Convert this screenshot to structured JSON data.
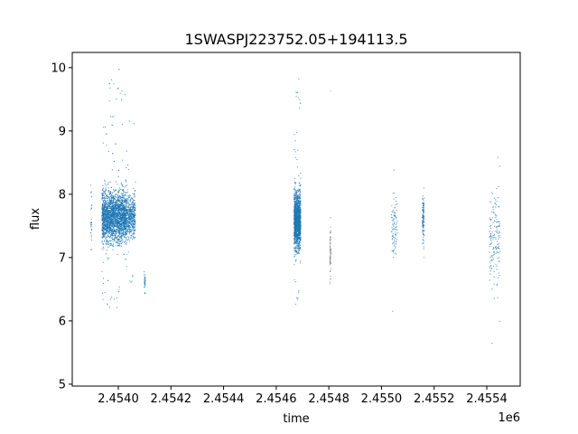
{
  "chart_data": {
    "type": "scatter",
    "title": "1SWASPJ223752.05+194113.5",
    "xlabel": "time",
    "ylabel": "flux",
    "x_offset_label": "1e6",
    "xlim": [
      2453825,
      2455527
    ],
    "ylim": [
      4.97,
      10.24
    ],
    "x_ticks": [
      2454000,
      2454200,
      2454400,
      2454600,
      2454800,
      2455000,
      2455200,
      2455400
    ],
    "x_tick_labels": [
      "2.4540",
      "2.4542",
      "2.4544",
      "2.4546",
      "2.4548",
      "2.4550",
      "2.4552",
      "2.4554"
    ],
    "y_ticks": [
      5,
      6,
      7,
      8,
      9,
      10
    ],
    "y_tick_labels": [
      "5",
      "6",
      "7",
      "8",
      "9",
      "10"
    ],
    "grid": false,
    "marker_color": "#1f77b4",
    "secondary_marker_color": "#7f7f7f",
    "clusters": [
      {
        "time_range": [
          2453895,
          2453899
        ],
        "flux_core": [
          7.6,
          0.5
        ],
        "flux_range": [
          6.4,
          8.7
        ],
        "points": 30,
        "color": "mixed"
      },
      {
        "time_range": [
          2453938,
          2454030
        ],
        "flux_core": [
          7.65,
          0.35
        ],
        "flux_range": [
          6.2,
          10.0
        ],
        "points": 2600,
        "color": "blue"
      },
      {
        "time_range": [
          2454030,
          2454065
        ],
        "flux_core": [
          7.65,
          0.3
        ],
        "flux_range": [
          6.5,
          9.4
        ],
        "points": 500,
        "color": "blue"
      },
      {
        "time_range": [
          2454098,
          2454103
        ],
        "flux_core": [
          6.6,
          0.15
        ],
        "flux_range": [
          6.2,
          7.0
        ],
        "points": 30,
        "color": "blue"
      },
      {
        "time_range": [
          2454668,
          2454693
        ],
        "flux_core": [
          7.6,
          0.4
        ],
        "flux_range": [
          6.2,
          9.85
        ],
        "points": 1500,
        "color": "blue"
      },
      {
        "time_range": [
          2454804,
          2454808
        ],
        "flux_core": [
          7.1,
          0.35
        ],
        "flux_range": [
          6.3,
          9.95
        ],
        "points": 70,
        "color": "gray"
      },
      {
        "time_range": [
          2455038,
          2455060
        ],
        "flux_core": [
          7.5,
          0.45
        ],
        "flux_range": [
          6.1,
          9.1
        ],
        "points": 90,
        "color": "blue"
      },
      {
        "time_range": [
          2455155,
          2455162
        ],
        "flux_core": [
          7.6,
          0.35
        ],
        "flux_range": [
          6.6,
          8.4
        ],
        "points": 120,
        "color": "blue"
      },
      {
        "time_range": [
          2455410,
          2455450
        ],
        "flux_core": [
          7.3,
          0.7
        ],
        "flux_range": [
          5.2,
          9.1
        ],
        "points": 160,
        "color": "blue"
      }
    ]
  }
}
